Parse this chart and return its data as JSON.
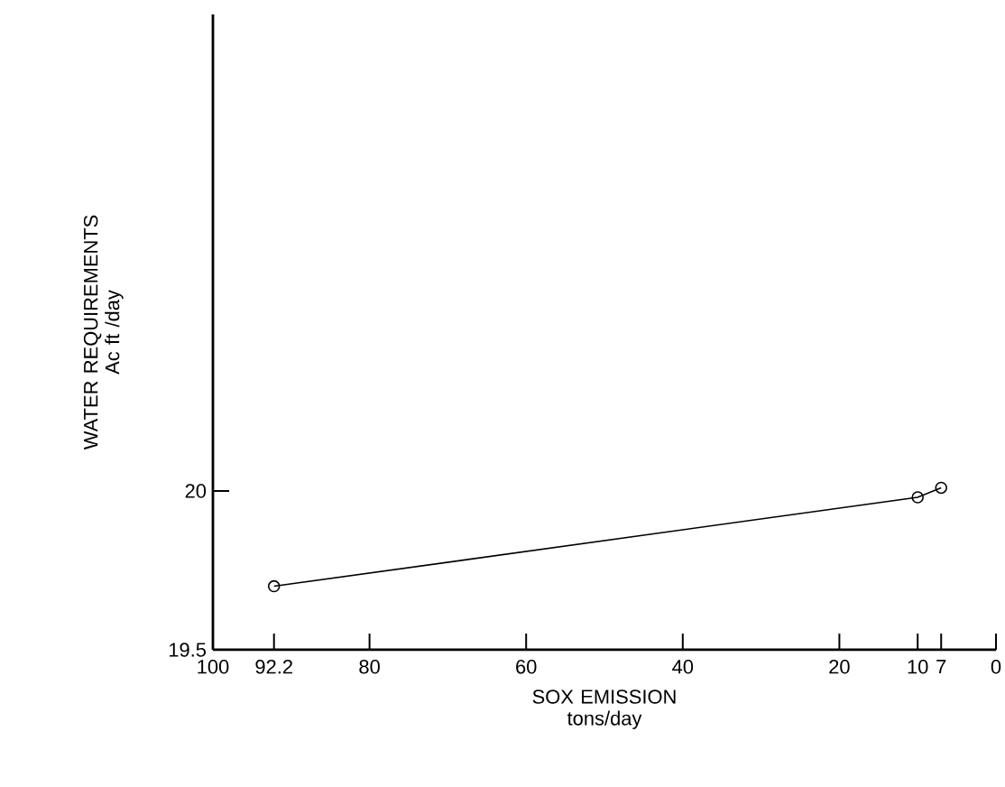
{
  "chart_data": {
    "type": "line",
    "xlabel": "SOX EMISSION tons/day",
    "ylabel": "WATER REQUIREMENTS Ac ft /day",
    "x": [
      92.2,
      10,
      7
    ],
    "values": [
      19.7,
      19.98,
      20.01
    ],
    "color": "#000000",
    "marker": "circle",
    "line_style": "solid",
    "grid": false,
    "xlim": [
      100,
      0
    ],
    "xticks": [
      100,
      92.2,
      80,
      60,
      40,
      20,
      10,
      7,
      0
    ],
    "ylim": [
      19.5,
      21.5
    ],
    "yticks": [
      19.5,
      20
    ]
  }
}
